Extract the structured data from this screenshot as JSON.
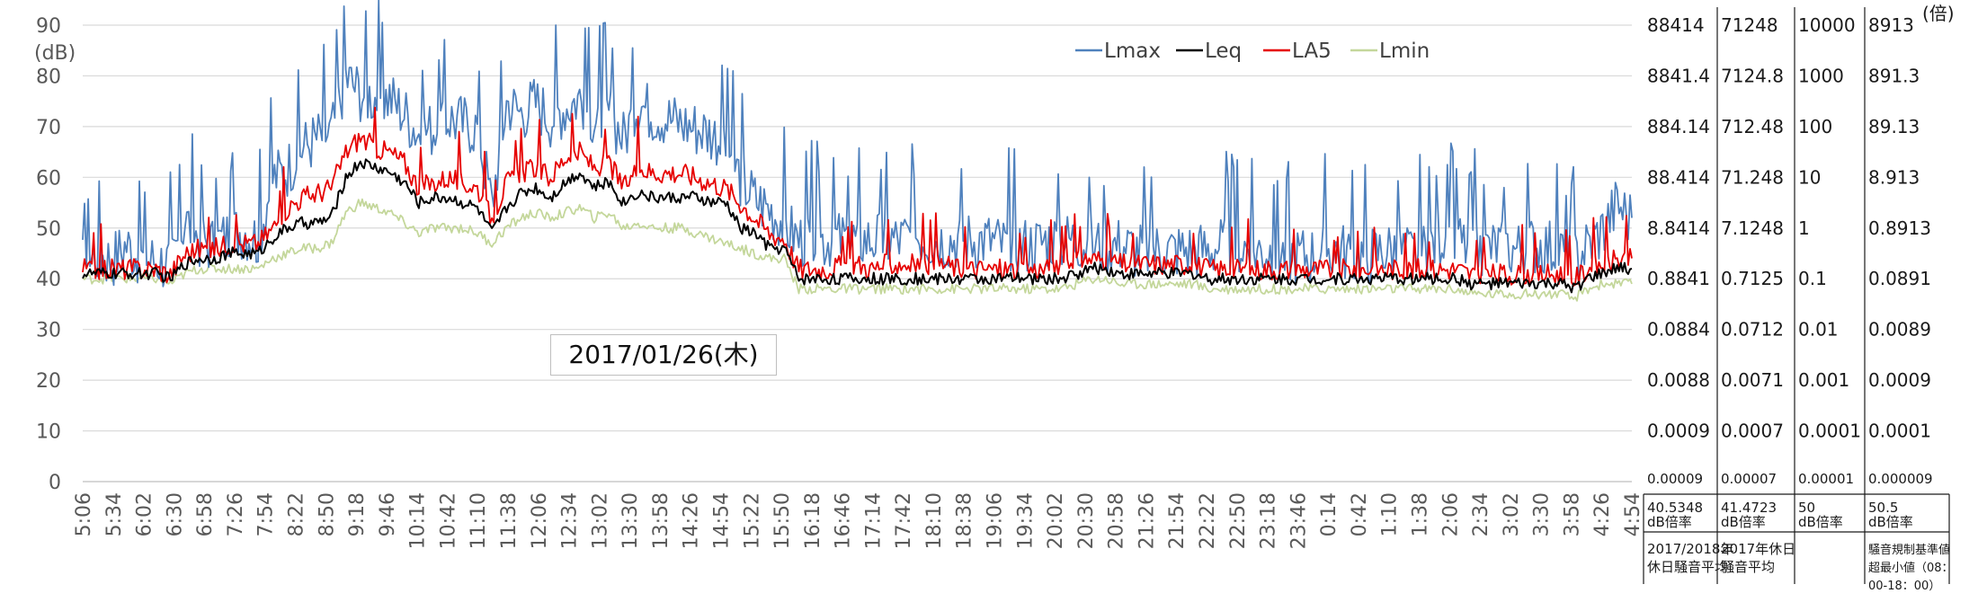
{
  "chart_data": {
    "type": "line",
    "ylabel": "(dB)",
    "right_unit": "(倍)",
    "date_label": "2017/01/26(木)",
    "ylim": [
      0,
      90
    ],
    "yticks": [
      0,
      10,
      20,
      30,
      40,
      50,
      60,
      70,
      80,
      90
    ],
    "x_tick_labels": [
      "5:06",
      "5:34",
      "6:02",
      "6:30",
      "6:58",
      "7:26",
      "7:54",
      "8:22",
      "8:50",
      "9:18",
      "9:46",
      "10:14",
      "10:42",
      "11:10",
      "11:38",
      "12:06",
      "12:34",
      "13:02",
      "13:30",
      "13:58",
      "14:26",
      "14:54",
      "15:22",
      "15:50",
      "16:18",
      "16:46",
      "17:14",
      "17:42",
      "18:10",
      "18:38",
      "19:06",
      "19:34",
      "20:02",
      "20:30",
      "20:58",
      "21:26",
      "21:54",
      "22:22",
      "22:50",
      "23:18",
      "23:46",
      "0:14",
      "0:42",
      "1:10",
      "1:38",
      "2:06",
      "2:34",
      "3:02",
      "3:30",
      "3:58",
      "4:26",
      "4:54"
    ],
    "legend": {
      "position": "top-center",
      "entries": [
        "Lmax",
        "Leq",
        "LA5",
        "Lmin"
      ]
    },
    "grid": true,
    "series": [
      {
        "name": "Lmax",
        "color": "#4f81bd",
        "values": [
          43,
          45,
          44,
          47,
          44,
          44,
          43,
          52,
          48,
          47,
          49,
          50,
          48,
          60,
          62,
          66,
          68,
          69,
          80,
          77,
          76,
          76,
          73,
          69,
          70,
          72,
          71,
          70,
          55,
          75,
          73,
          75,
          72,
          74,
          76,
          72,
          73,
          68,
          75,
          73,
          72,
          71,
          70,
          69,
          67,
          60,
          56,
          54,
          51,
          48,
          48,
          48,
          48,
          48,
          48,
          48,
          48,
          49,
          48,
          48,
          48,
          48,
          48,
          47,
          47,
          47,
          48,
          48,
          48,
          47,
          47,
          47,
          46,
          46,
          46,
          46,
          46,
          46,
          47,
          47,
          46,
          46,
          45,
          45,
          45,
          46,
          46,
          45,
          45,
          46,
          46,
          45,
          46,
          49,
          48,
          46,
          46,
          47,
          46,
          47,
          47,
          46,
          44,
          47,
          50,
          55,
          52
        ]
      },
      {
        "name": "Leq",
        "color": "#000000",
        "values": [
          41,
          41,
          41,
          41,
          41,
          41,
          40,
          43,
          44,
          44,
          45,
          45,
          45,
          48,
          50,
          51,
          51,
          52,
          60,
          63,
          62,
          61,
          59,
          55,
          56,
          56,
          55,
          54,
          49,
          54,
          57,
          58,
          56,
          59,
          61,
          58,
          59,
          55,
          57,
          56,
          56,
          56,
          56,
          55,
          55,
          50,
          49,
          46,
          46,
          40,
          40,
          40,
          40,
          40,
          40,
          40,
          40,
          40,
          40,
          40,
          40,
          40,
          40,
          40,
          40,
          40,
          40,
          40,
          41,
          42,
          42,
          41,
          41,
          41,
          41,
          41,
          41,
          40,
          40,
          40,
          40,
          40,
          40,
          40,
          40,
          40,
          40,
          40,
          40,
          40,
          40,
          40,
          40,
          40,
          40,
          39,
          39,
          39,
          39,
          39,
          39,
          39,
          38,
          40,
          41,
          42,
          42
        ]
      },
      {
        "name": "LA5",
        "color": "#e60000",
        "values": [
          42,
          42,
          42,
          42,
          42,
          42,
          41,
          45,
          46,
          46,
          47,
          47,
          47,
          50,
          54,
          56,
          57,
          58,
          65,
          68,
          66,
          65,
          63,
          58,
          59,
          60,
          59,
          58,
          52,
          59,
          61,
          62,
          60,
          64,
          65,
          62,
          63,
          58,
          62,
          61,
          61,
          61,
          60,
          59,
          58,
          55,
          52,
          49,
          48,
          42,
          42,
          42,
          43,
          43,
          42,
          43,
          43,
          43,
          43,
          43,
          42,
          42,
          42,
          42,
          42,
          42,
          42,
          43,
          44,
          44,
          44,
          43,
          43,
          43,
          43,
          43,
          43,
          42,
          42,
          42,
          42,
          42,
          42,
          42,
          42,
          42,
          42,
          42,
          42,
          42,
          42,
          42,
          42,
          42,
          42,
          41,
          41,
          41,
          41,
          41,
          41,
          41,
          40,
          42,
          43,
          44,
          44
        ]
      },
      {
        "name": "Lmin",
        "color": "#c4d79b",
        "values": [
          40,
          40,
          40,
          40,
          40,
          40,
          39,
          41,
          42,
          42,
          42,
          42,
          42,
          44,
          45,
          46,
          46,
          47,
          53,
          55,
          54,
          53,
          51,
          49,
          50,
          50,
          50,
          49,
          47,
          50,
          52,
          53,
          52,
          53,
          54,
          52,
          53,
          50,
          51,
          50,
          50,
          50,
          49,
          48,
          47,
          46,
          45,
          44,
          44,
          38,
          38,
          38,
          38,
          38,
          38,
          38,
          38,
          38,
          38,
          38,
          38,
          38,
          38,
          38,
          38,
          38,
          38,
          38,
          39,
          40,
          40,
          39,
          39,
          39,
          39,
          39,
          39,
          38,
          38,
          38,
          38,
          38,
          38,
          38,
          38,
          38,
          38,
          38,
          38,
          38,
          38,
          38,
          38,
          38,
          38,
          37,
          37,
          37,
          37,
          37,
          37,
          37,
          36,
          38,
          39,
          39,
          39
        ]
      }
    ],
    "right_axes": [
      {
        "values": [
          "88414",
          "8841.4",
          "884.14",
          "88.414",
          "8.8414",
          "0.8841",
          "0.0884",
          "0.0088",
          "0.0009",
          "0.00009"
        ]
      },
      {
        "values": [
          "71248",
          "7124.8",
          "712.48",
          "71.248",
          "7.1248",
          "0.7125",
          "0.0712",
          "0.0071",
          "0.0007",
          "0.00007"
        ]
      },
      {
        "values": [
          "10000",
          "1000",
          "100",
          "10",
          "1",
          "0.1",
          "0.01",
          "0.001",
          "0.0001",
          "0.00001"
        ]
      },
      {
        "values": [
          "8913",
          "891.3",
          "89.13",
          "8.913",
          "0.8913",
          "0.0891",
          "0.0089",
          "0.0009",
          "0.0001",
          "0.000009"
        ]
      }
    ],
    "footer": [
      {
        "value": "40.5348",
        "unit": "dB倍率",
        "label_line1": "2017/2018年",
        "label_line2": "休日騒音平均",
        "label_line3": ""
      },
      {
        "value": "41.4723",
        "unit": "dB倍率",
        "label_line1": "2017年休日",
        "label_line2": "騒音平均",
        "label_line3": ""
      },
      {
        "value": "50",
        "unit": "dB倍率",
        "label_line1": "",
        "label_line2": "",
        "label_line3": ""
      },
      {
        "value": "50.5",
        "unit": "dB倍率",
        "label_line1": "騒音規制基準値",
        "label_line2": "超最小値（08：",
        "label_line3": "00-18：00）"
      }
    ]
  }
}
